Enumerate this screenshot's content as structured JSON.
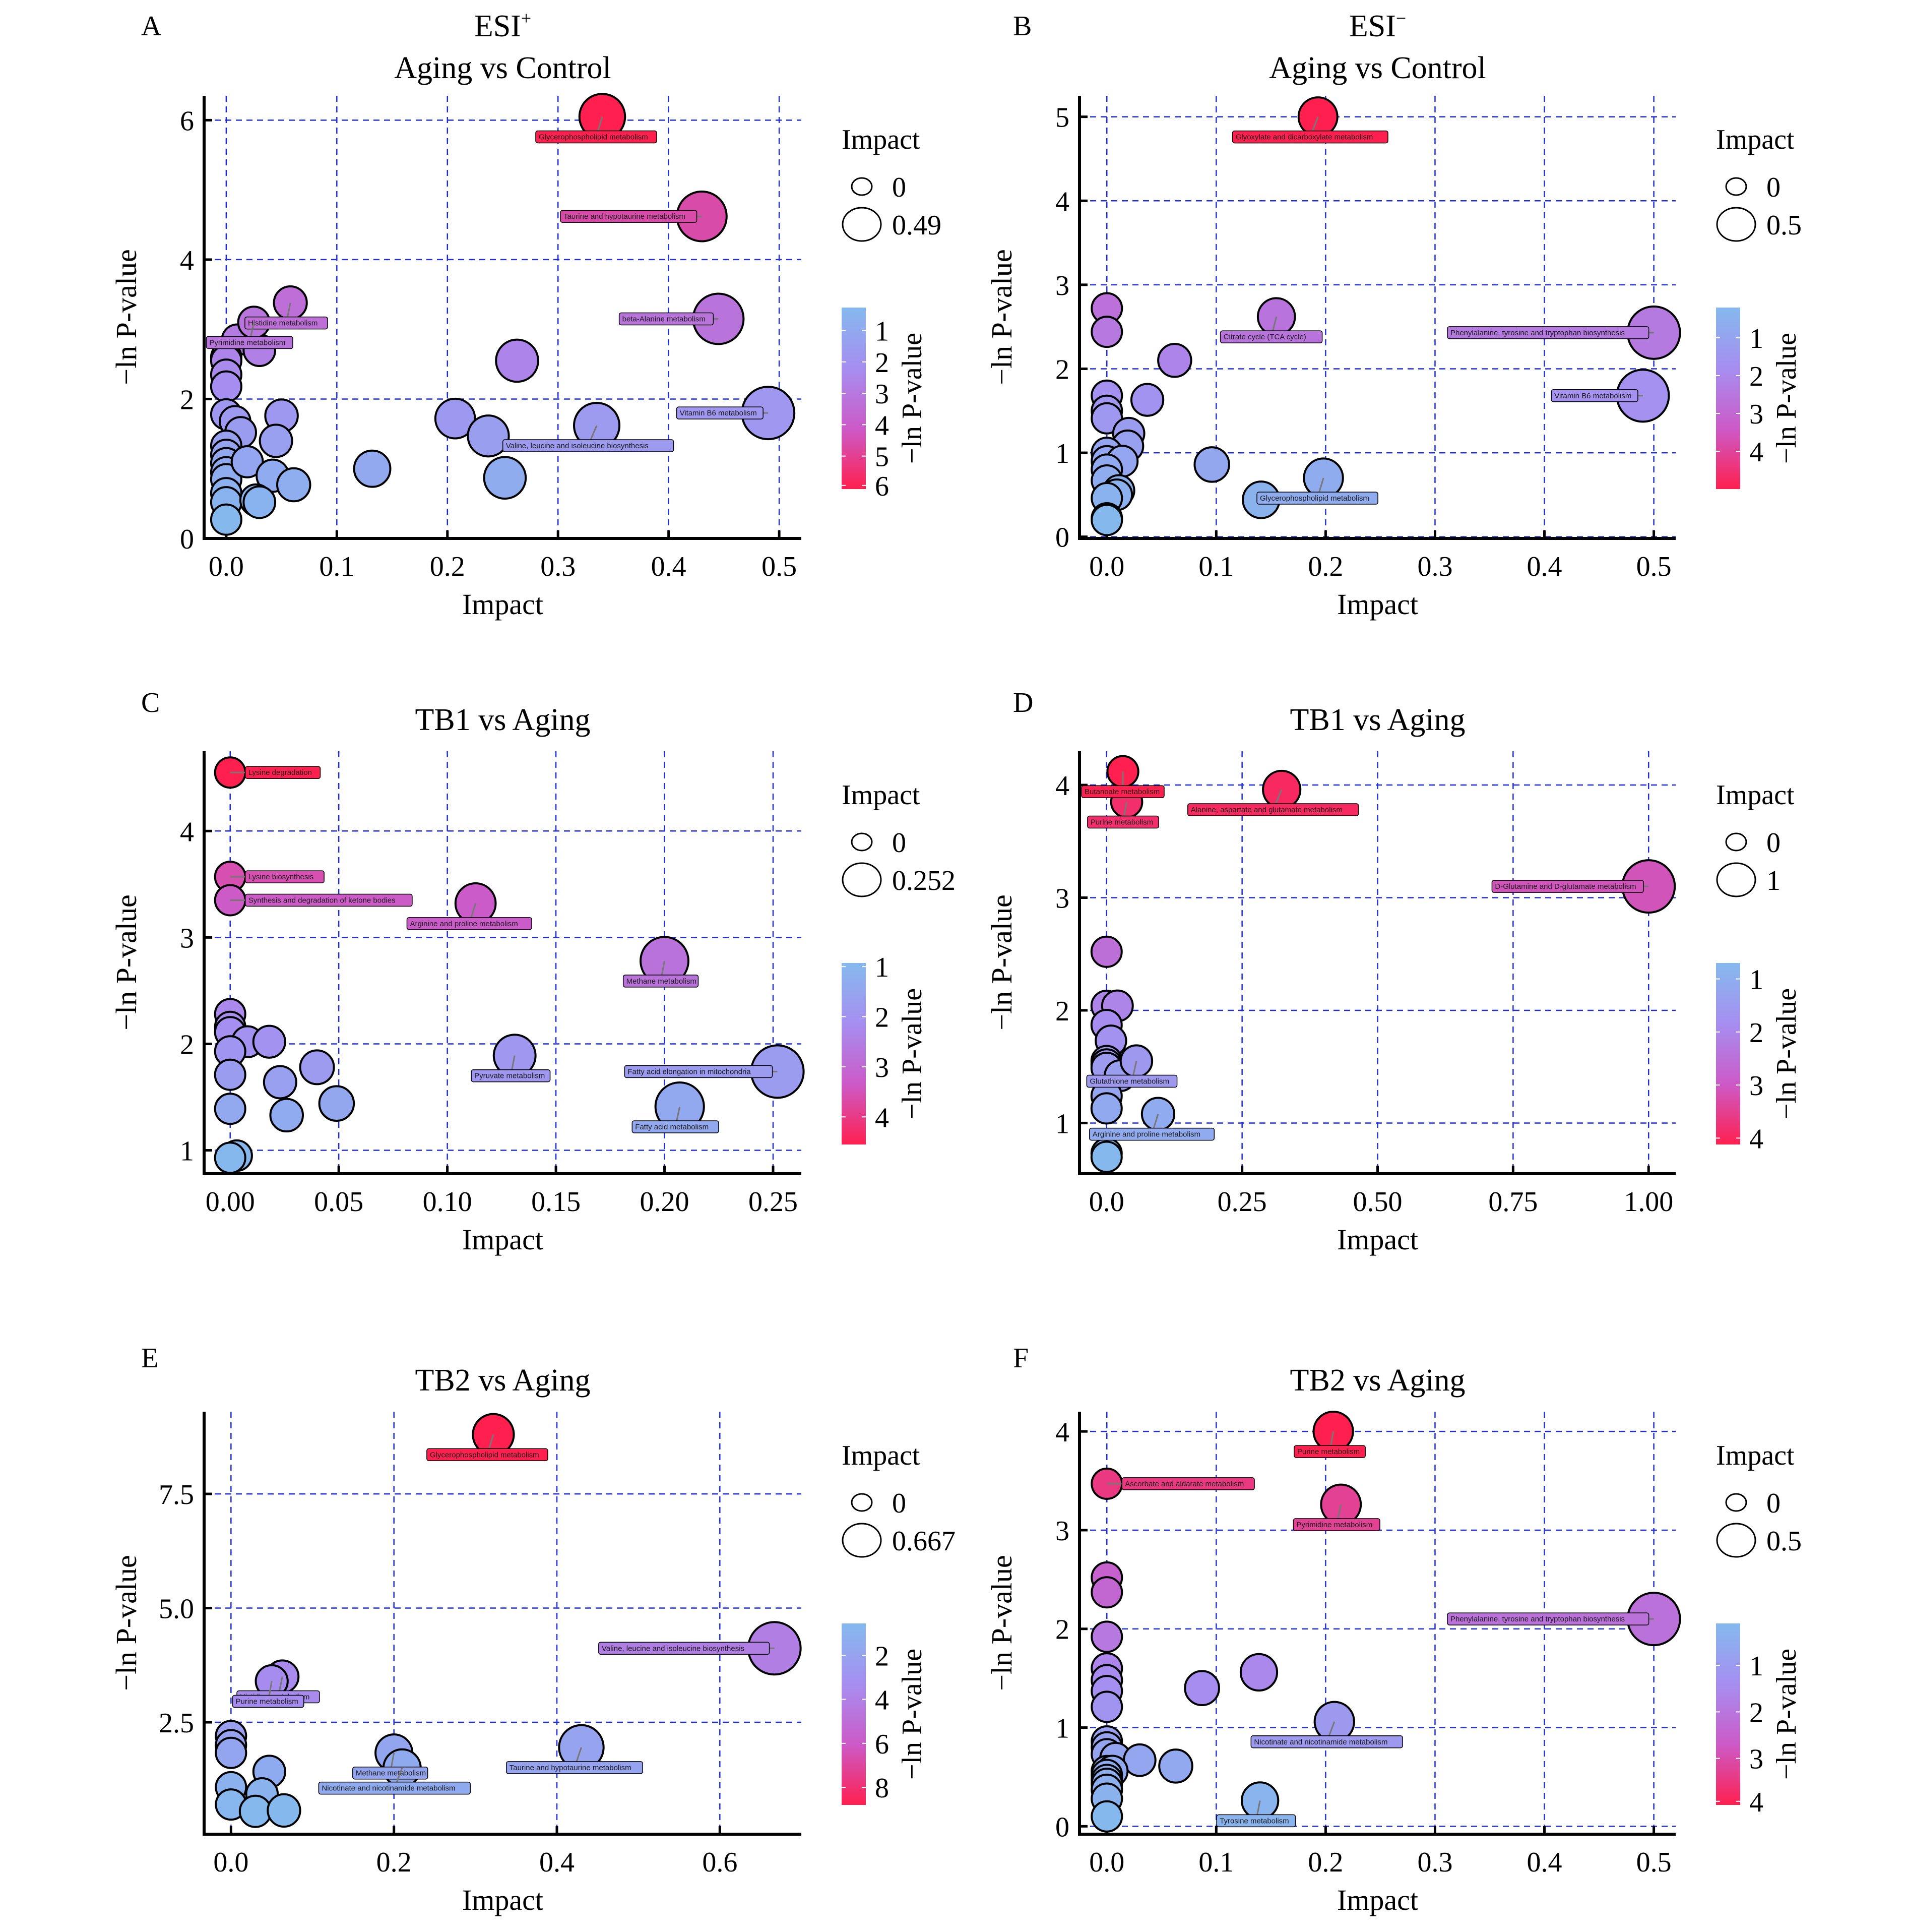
{
  "figure": {
    "colorscale": {
      "low": "#85b9ee",
      "mid1": "#a68ef0",
      "mid2": "#cc5ac8",
      "high": "#ff2050"
    },
    "grid_color": "#1f2fe0"
  },
  "chart_data": [
    {
      "panel": "A",
      "type": "scatter",
      "title_line1": "ESI",
      "title_sup": "+",
      "title": "Aging vs Control",
      "xlabel": "Impact",
      "ylabel": "−ln P-value",
      "xlim": [
        -0.02,
        0.52
      ],
      "ylim": [
        0,
        6.35
      ],
      "xticks": [
        0.0,
        0.1,
        0.2,
        0.3,
        0.4,
        0.5
      ],
      "xtick_labels": [
        "0.0",
        "0.1",
        "0.2",
        "0.3",
        "0.4",
        "0.5"
      ],
      "yticks": [
        0,
        2,
        4,
        6
      ],
      "ytick_labels": [
        "0",
        "2",
        "4",
        "6"
      ],
      "grid": true,
      "size_legend": {
        "title": "Impact",
        "values": [
          "0",
          "0.49"
        ],
        "max": 0.49
      },
      "color_legend": {
        "title": "−ln P-value",
        "ticks": [
          "1",
          "2",
          "3",
          "4",
          "5",
          "6"
        ],
        "range": [
          0.27,
          6.05
        ]
      },
      "points": [
        {
          "x": 0.34,
          "y": 6.05,
          "label": "Glycerophospholipid metabolism"
        },
        {
          "x": 0.43,
          "y": 4.62,
          "label": "Taurine and hypotaurine metabolism"
        },
        {
          "x": 0.445,
          "y": 3.15,
          "label": "beta-Alanine metabolism"
        },
        {
          "x": 0.058,
          "y": 3.38,
          "label": "Histidine metabolism"
        },
        {
          "x": 0.025,
          "y": 3.1,
          "label": "Pyrimidine metabolism"
        },
        {
          "x": 0.49,
          "y": 1.8,
          "label": "Vitamin B6 metabolism"
        },
        {
          "x": 0.335,
          "y": 1.62,
          "label": "Valine, leucine and isoleucine biosynthesis"
        },
        {
          "x": 0.263,
          "y": 2.55
        },
        {
          "x": 0.207,
          "y": 1.72
        },
        {
          "x": 0.237,
          "y": 1.47
        },
        {
          "x": 0.132,
          "y": 1.0
        },
        {
          "x": 0.252,
          "y": 0.87
        },
        {
          "x": 0.01,
          "y": 2.85
        },
        {
          "x": 0.03,
          "y": 2.7
        },
        {
          "x": 0.0,
          "y": 2.6
        },
        {
          "x": 0.0,
          "y": 2.55
        },
        {
          "x": 0.0,
          "y": 2.35
        },
        {
          "x": 0.0,
          "y": 2.18
        },
        {
          "x": 0.0,
          "y": 1.78
        },
        {
          "x": 0.008,
          "y": 1.68
        },
        {
          "x": 0.013,
          "y": 1.52
        },
        {
          "x": 0.05,
          "y": 1.76
        },
        {
          "x": 0.045,
          "y": 1.4
        },
        {
          "x": 0.0,
          "y": 1.33
        },
        {
          "x": 0.0,
          "y": 1.2
        },
        {
          "x": 0.0,
          "y": 1.08
        },
        {
          "x": 0.0,
          "y": 0.95
        },
        {
          "x": 0.0,
          "y": 0.85
        },
        {
          "x": 0.0,
          "y": 0.65
        },
        {
          "x": 0.0,
          "y": 0.52
        },
        {
          "x": 0.0,
          "y": 0.27
        },
        {
          "x": 0.019,
          "y": 1.1
        },
        {
          "x": 0.042,
          "y": 0.9
        },
        {
          "x": 0.061,
          "y": 0.77
        },
        {
          "x": 0.027,
          "y": 0.55
        },
        {
          "x": 0.03,
          "y": 0.52
        }
      ]
    },
    {
      "panel": "B",
      "type": "scatter",
      "title_line1": "ESI",
      "title_sup": "−",
      "title": "Aging vs Control",
      "xlabel": "Impact",
      "ylabel": "−ln P-value",
      "xlim": [
        -0.025,
        0.52
      ],
      "ylim": [
        -0.02,
        5.25
      ],
      "xticks": [
        0.0,
        0.1,
        0.2,
        0.3,
        0.4,
        0.5
      ],
      "xtick_labels": [
        "0.0",
        "0.1",
        "0.2",
        "0.3",
        "0.4",
        "0.5"
      ],
      "yticks": [
        0,
        1,
        2,
        3,
        4,
        5
      ],
      "ytick_labels": [
        "0",
        "1",
        "2",
        "3",
        "4",
        "5"
      ],
      "grid": true,
      "size_legend": {
        "title": "Impact",
        "values": [
          "0",
          "0.5"
        ],
        "max": 0.5
      },
      "color_legend": {
        "title": "−ln P-value",
        "ticks": [
          "1",
          "2",
          "3",
          "4"
        ],
        "range": [
          0.2,
          5.0
        ]
      },
      "points": [
        {
          "x": 0.193,
          "y": 5.0,
          "label": "Glyoxylate and dicarboxylate metabolism"
        },
        {
          "x": 0.155,
          "y": 2.62,
          "label": "Citrate cycle (TCA cycle)"
        },
        {
          "x": 0.5,
          "y": 2.43,
          "label": "Phenylalanine, tyrosine and tryptophan biosynthesis"
        },
        {
          "x": 0.49,
          "y": 1.68,
          "label": "Vitamin B6 metabolism"
        },
        {
          "x": 0.198,
          "y": 0.7,
          "label": "Glycerophospholipid metabolism"
        },
        {
          "x": 0.0,
          "y": 2.72
        },
        {
          "x": 0.0,
          "y": 2.44
        },
        {
          "x": 0.062,
          "y": 2.1
        },
        {
          "x": 0.0,
          "y": 1.68
        },
        {
          "x": 0.037,
          "y": 1.63
        },
        {
          "x": 0.0,
          "y": 1.5
        },
        {
          "x": 0.0,
          "y": 1.41
        },
        {
          "x": 0.02,
          "y": 1.23
        },
        {
          "x": 0.019,
          "y": 1.08
        },
        {
          "x": 0.0,
          "y": 1.0
        },
        {
          "x": 0.0,
          "y": 0.9
        },
        {
          "x": 0.014,
          "y": 0.9
        },
        {
          "x": 0.0,
          "y": 0.8
        },
        {
          "x": 0.0,
          "y": 0.67
        },
        {
          "x": 0.011,
          "y": 0.55
        },
        {
          "x": 0.009,
          "y": 0.5
        },
        {
          "x": 0.0,
          "y": 0.46
        },
        {
          "x": 0.0,
          "y": 0.22
        },
        {
          "x": 0.0,
          "y": 0.2
        },
        {
          "x": 0.096,
          "y": 0.86
        },
        {
          "x": 0.141,
          "y": 0.44
        }
      ]
    },
    {
      "panel": "C",
      "type": "scatter",
      "title": "TB1 vs Aging",
      "xlabel": "Impact",
      "ylabel": "−ln P-value",
      "xlim": [
        -0.012,
        0.263
      ],
      "ylim": [
        0.78,
        4.75
      ],
      "xticks": [
        0.0,
        0.05,
        0.1,
        0.15,
        0.2,
        0.25
      ],
      "xtick_labels": [
        "0.00",
        "0.05",
        "0.10",
        "0.15",
        "0.20",
        "0.25"
      ],
      "yticks": [
        1,
        2,
        3,
        4
      ],
      "ytick_labels": [
        "1",
        "2",
        "3",
        "4"
      ],
      "grid": true,
      "size_legend": {
        "title": "Impact",
        "values": [
          "0",
          "0.252"
        ],
        "max": 0.252
      },
      "color_legend": {
        "title": "−ln P-value",
        "ticks": [
          "1",
          "2",
          "3",
          "4"
        ],
        "range": [
          0.93,
          4.55
        ]
      },
      "points": [
        {
          "x": 0.0,
          "y": 4.55,
          "label": "Lysine degradation"
        },
        {
          "x": 0.0,
          "y": 3.57,
          "label": "Lysine biosynthesis"
        },
        {
          "x": 0.0,
          "y": 3.35,
          "label": "Synthesis and degradation of ketone bodies"
        },
        {
          "x": 0.113,
          "y": 3.32,
          "label": "Arginine and proline metabolism"
        },
        {
          "x": 0.2,
          "y": 2.78,
          "label": "Methane metabolism"
        },
        {
          "x": 0.131,
          "y": 1.89,
          "label": "Pyruvate metabolism"
        },
        {
          "x": 0.252,
          "y": 1.74,
          "label": "Fatty acid elongation in mitochondria"
        },
        {
          "x": 0.207,
          "y": 1.41,
          "label": "Fatty acid metabolism"
        },
        {
          "x": 0.0,
          "y": 2.28
        },
        {
          "x": 0.0,
          "y": 2.16
        },
        {
          "x": 0.0,
          "y": 2.11
        },
        {
          "x": 0.008,
          "y": 2.02
        },
        {
          "x": 0.018,
          "y": 2.02
        },
        {
          "x": 0.0,
          "y": 1.93
        },
        {
          "x": 0.04,
          "y": 1.78
        },
        {
          "x": 0.0,
          "y": 1.71
        },
        {
          "x": 0.023,
          "y": 1.64
        },
        {
          "x": 0.049,
          "y": 1.44
        },
        {
          "x": 0.0,
          "y": 1.39
        },
        {
          "x": 0.026,
          "y": 1.33
        },
        {
          "x": 0.003,
          "y": 0.95
        },
        {
          "x": 0.0,
          "y": 0.93
        }
      ]
    },
    {
      "panel": "D",
      "type": "scatter",
      "title": "TB1 vs Aging",
      "xlabel": "Impact",
      "ylabel": "−ln P-value",
      "xlim": [
        -0.05,
        1.05
      ],
      "ylim": [
        0.55,
        4.3
      ],
      "xticks": [
        0.0,
        0.25,
        0.5,
        0.75,
        1.0
      ],
      "xtick_labels": [
        "0.0",
        "0.25",
        "0.50",
        "0.75",
        "1.00"
      ],
      "yticks": [
        1,
        2,
        3,
        4
      ],
      "ytick_labels": [
        "1",
        "2",
        "3",
        "4"
      ],
      "grid": true,
      "size_legend": {
        "title": "Impact",
        "values": [
          "0",
          "1"
        ],
        "max": 1.0
      },
      "color_legend": {
        "title": "−ln P-value",
        "ticks": [
          "1",
          "2",
          "3",
          "4"
        ],
        "range": [
          0.7,
          4.12
        ]
      },
      "points": [
        {
          "x": 0.03,
          "y": 4.12,
          "label": "Butanoate metabolism"
        },
        {
          "x": 0.037,
          "y": 3.85,
          "label": "Purine metabolism"
        },
        {
          "x": 0.323,
          "y": 3.96,
          "label": "Alanine, aspartate and glutamate metabolism"
        },
        {
          "x": 1.0,
          "y": 3.1,
          "label": "D-Glutamine and D-glutamate metabolism"
        },
        {
          "x": 0.055,
          "y": 1.55,
          "label": "Glutathione metabolism"
        },
        {
          "x": 0.095,
          "y": 1.08,
          "label": "Arginine and proline metabolism"
        },
        {
          "x": 0.0,
          "y": 2.52
        },
        {
          "x": 0.0,
          "y": 2.04
        },
        {
          "x": 0.02,
          "y": 2.04
        },
        {
          "x": 0.0,
          "y": 1.87
        },
        {
          "x": 0.008,
          "y": 1.73
        },
        {
          "x": 0.0,
          "y": 1.55
        },
        {
          "x": 0.0,
          "y": 1.52
        },
        {
          "x": 0.0,
          "y": 1.49
        },
        {
          "x": 0.025,
          "y": 1.42
        },
        {
          "x": 0.0,
          "y": 1.24
        },
        {
          "x": 0.0,
          "y": 1.13
        },
        {
          "x": 0.0,
          "y": 0.73
        },
        {
          "x": 0.0,
          "y": 0.7
        }
      ]
    },
    {
      "panel": "E",
      "type": "scatter",
      "title": "TB2 vs Aging",
      "xlabel": "Impact",
      "ylabel": "−ln P-value",
      "xlim": [
        -0.033,
        0.7
      ],
      "ylim": [
        0.05,
        9.3
      ],
      "xticks": [
        0.0,
        0.2,
        0.4,
        0.6
      ],
      "xtick_labels": [
        "0.0",
        "0.2",
        "0.4",
        "0.6"
      ],
      "yticks": [
        2.5,
        5.0,
        7.5
      ],
      "ytick_labels": [
        "2.5",
        "5.0",
        "7.5"
      ],
      "grid": true,
      "size_legend": {
        "title": "Impact",
        "values": [
          "0",
          "0.667"
        ],
        "max": 0.667
      },
      "color_legend": {
        "title": "−ln P-value",
        "ticks": [
          "2",
          "4",
          "6",
          "8"
        ],
        "range": [
          0.55,
          8.8
        ]
      },
      "points": [
        {
          "x": 0.322,
          "y": 8.8,
          "label": "Glycerophospholipid metabolism"
        },
        {
          "x": 0.667,
          "y": 4.12,
          "label": "Valine, leucine and isoleucine biosynthesis"
        },
        {
          "x": 0.063,
          "y": 3.5,
          "label": "Histidine metabolism"
        },
        {
          "x": 0.05,
          "y": 3.4,
          "label": "Purine metabolism"
        },
        {
          "x": 0.2,
          "y": 1.83,
          "label": "Methane metabolism"
        },
        {
          "x": 0.21,
          "y": 1.5,
          "label": "Nicotinate and nicotinamide metabolism"
        },
        {
          "x": 0.43,
          "y": 1.95,
          "label": "Taurine and hypotaurine metabolism"
        },
        {
          "x": 0.0,
          "y": 2.2
        },
        {
          "x": 0.0,
          "y": 2.0
        },
        {
          "x": 0.0,
          "y": 1.83
        },
        {
          "x": 0.047,
          "y": 1.42
        },
        {
          "x": 0.0,
          "y": 1.08
        },
        {
          "x": 0.038,
          "y": 0.93
        },
        {
          "x": 0.0,
          "y": 0.7
        },
        {
          "x": 0.03,
          "y": 0.55
        },
        {
          "x": 0.065,
          "y": 0.57
        }
      ]
    },
    {
      "panel": "F",
      "type": "scatter",
      "title": "TB2 vs Aging",
      "xlabel": "Impact",
      "ylabel": "−ln P-value",
      "xlim": [
        -0.025,
        0.52
      ],
      "ylim": [
        -0.08,
        4.2
      ],
      "xticks": [
        0.0,
        0.1,
        0.2,
        0.3,
        0.4,
        0.5
      ],
      "xtick_labels": [
        "0.0",
        "0.1",
        "0.2",
        "0.3",
        "0.4",
        "0.5"
      ],
      "yticks": [
        0,
        1,
        2,
        3,
        4
      ],
      "ytick_labels": [
        "0",
        "1",
        "2",
        "3",
        "4"
      ],
      "grid": true,
      "size_legend": {
        "title": "Impact",
        "values": [
          "0",
          "0.5"
        ],
        "max": 0.5
      },
      "color_legend": {
        "title": "−ln P-value",
        "ticks": [
          "1",
          "2",
          "3",
          "4"
        ],
        "range": [
          0.1,
          4.0
        ]
      },
      "points": [
        {
          "x": 0.207,
          "y": 4.0,
          "label": "Purine metabolism"
        },
        {
          "x": 0.0,
          "y": 3.47,
          "label": "Ascorbate and aldarate metabolism"
        },
        {
          "x": 0.214,
          "y": 3.26,
          "label": "Pyrimidine metabolism"
        },
        {
          "x": 0.5,
          "y": 2.1,
          "label": "Phenylalanine, tyrosine and tryptophan biosynthesis"
        },
        {
          "x": 0.208,
          "y": 1.06,
          "label": "Nicotinate and nicotinamide metabolism"
        },
        {
          "x": 0.14,
          "y": 0.26,
          "label": "Tyrosine metabolism"
        },
        {
          "x": 0.0,
          "y": 2.52
        },
        {
          "x": 0.0,
          "y": 2.37
        },
        {
          "x": 0.0,
          "y": 1.92
        },
        {
          "x": 0.0,
          "y": 1.6
        },
        {
          "x": 0.139,
          "y": 1.56
        },
        {
          "x": 0.0,
          "y": 1.48
        },
        {
          "x": 0.087,
          "y": 1.4
        },
        {
          "x": 0.0,
          "y": 1.37
        },
        {
          "x": 0.0,
          "y": 1.21
        },
        {
          "x": 0.0,
          "y": 0.86
        },
        {
          "x": 0.0,
          "y": 0.8
        },
        {
          "x": 0.0,
          "y": 0.73
        },
        {
          "x": 0.008,
          "y": 0.69
        },
        {
          "x": 0.03,
          "y": 0.67
        },
        {
          "x": 0.063,
          "y": 0.61
        },
        {
          "x": 0.0,
          "y": 0.56
        },
        {
          "x": 0.005,
          "y": 0.56
        },
        {
          "x": 0.0,
          "y": 0.52
        },
        {
          "x": 0.0,
          "y": 0.47
        },
        {
          "x": 0.0,
          "y": 0.43
        },
        {
          "x": 0.0,
          "y": 0.37
        },
        {
          "x": 0.0,
          "y": 0.28
        },
        {
          "x": 0.0,
          "y": 0.1
        }
      ]
    }
  ]
}
